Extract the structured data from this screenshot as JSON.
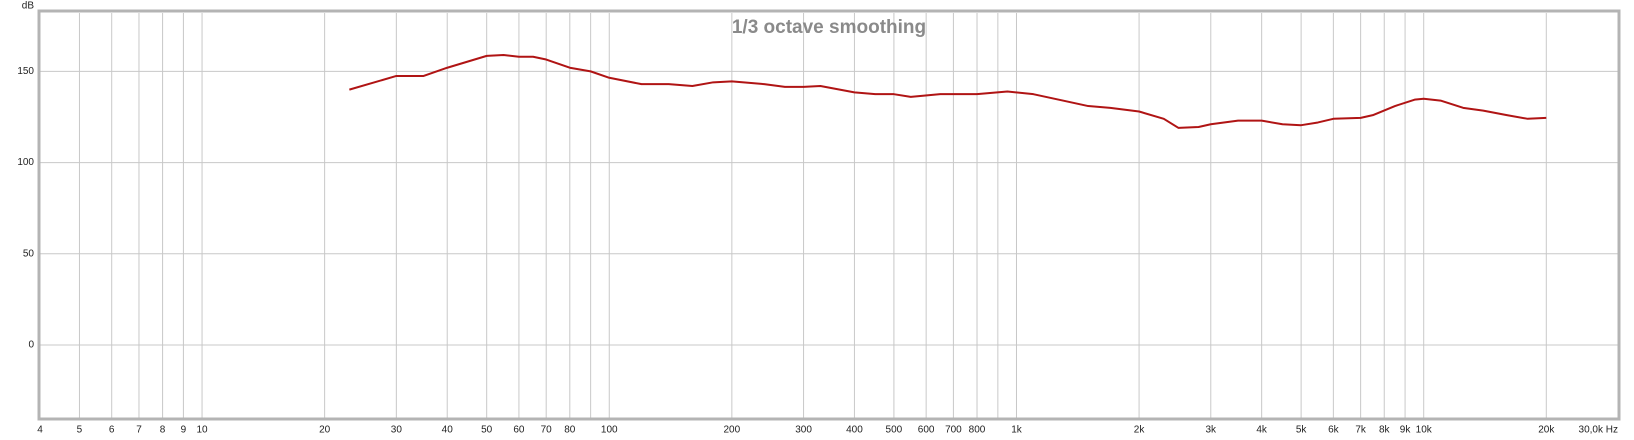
{
  "chart_data": {
    "type": "line",
    "title": "1/3 octave smoothing",
    "y_label": "dB",
    "xscale": "log",
    "grid": true,
    "xlim": [
      4,
      30000
    ],
    "ylim": [
      -40,
      182
    ],
    "yticks": [
      0,
      50,
      100,
      150
    ],
    "xticks": [
      4,
      5,
      6,
      7,
      8,
      9,
      10,
      20,
      30,
      40,
      50,
      60,
      70,
      80,
      100,
      200,
      300,
      400,
      500,
      600,
      700,
      800,
      {
        "value": 1000,
        "label": "1k"
      },
      {
        "value": 2000,
        "label": "2k"
      },
      {
        "value": 3000,
        "label": "3k"
      },
      {
        "value": 4000,
        "label": "4k"
      },
      {
        "value": 5000,
        "label": "5k"
      },
      {
        "value": 6000,
        "label": "6k"
      },
      {
        "value": 7000,
        "label": "7k"
      },
      {
        "value": 8000,
        "label": "8k"
      },
      {
        "value": 9000,
        "label": "9k"
      },
      {
        "value": 10000,
        "label": "10k"
      },
      {
        "value": 20000,
        "label": "20k"
      },
      {
        "value": 30000,
        "label": "30,0k Hz"
      }
    ],
    "xminor": [
      90,
      900
    ],
    "x": [
      23,
      30,
      35,
      40,
      50,
      55,
      60,
      65,
      70,
      80,
      90,
      100,
      120,
      140,
      160,
      180,
      200,
      240,
      270,
      300,
      330,
      400,
      450,
      500,
      550,
      650,
      750,
      800,
      950,
      1100,
      1300,
      1500,
      1700,
      2000,
      2300,
      2500,
      2800,
      3000,
      3500,
      4000,
      4500,
      5000,
      5500,
      6000,
      7000,
      7500,
      8500,
      9500,
      10000,
      11000,
      12500,
      14000,
      16000,
      18000,
      20000
    ],
    "series": [
      {
        "color": "#b01414",
        "values": [
          140,
          147.5,
          147.5,
          152,
          158.5,
          159,
          158,
          158,
          156.5,
          152,
          150,
          146.5,
          143,
          143,
          142,
          144,
          144.5,
          143,
          141.5,
          141.5,
          142,
          138.5,
          137.5,
          137.5,
          136,
          137.5,
          137.5,
          137.5,
          139,
          137.5,
          134,
          131,
          130,
          128,
          124,
          119,
          119.5,
          121,
          123,
          123,
          121,
          120.5,
          122,
          124,
          124.5,
          126,
          131,
          134.5,
          135,
          134,
          130,
          128.5,
          126,
          124,
          124.5
        ]
      }
    ]
  }
}
